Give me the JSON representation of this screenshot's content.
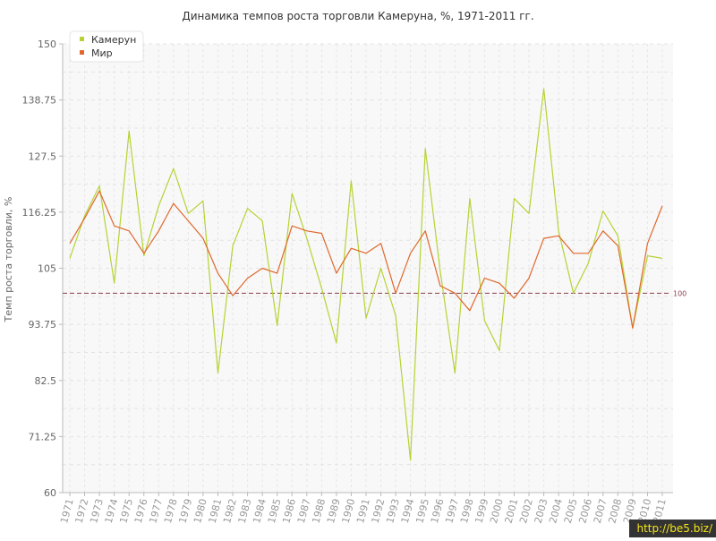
{
  "chart_data": {
    "type": "line",
    "title": "Динамика темпов роста торговли Камеруна, %, 1971-2011 гг.",
    "xlabel": "",
    "ylabel": "Темп роста торговли, %",
    "ylim": [
      60,
      150
    ],
    "yticks": [
      "60",
      "71.25",
      "82.5",
      "93.75",
      "105",
      "116.25",
      "127.5",
      "138.75",
      "150"
    ],
    "x": [
      "1971",
      "1972",
      "1973",
      "1974",
      "1975",
      "1976",
      "1977",
      "1978",
      "1979",
      "1980",
      "1981",
      "1982",
      "1983",
      "1984",
      "1985",
      "1986",
      "1987",
      "1988",
      "1989",
      "1990",
      "1991",
      "1992",
      "1993",
      "1994",
      "1995",
      "1996",
      "1997",
      "1998",
      "1999",
      "2000",
      "2001",
      "2002",
      "2003",
      "2004",
      "2005",
      "2006",
      "2007",
      "2008",
      "2009",
      "2010",
      "2011"
    ],
    "series": [
      {
        "name": "Камерун",
        "color": "#b5d334",
        "values": [
          107,
          115.5,
          121.5,
          102,
          132.5,
          107.5,
          117.5,
          125,
          116,
          118.5,
          84,
          109.5,
          117,
          114.5,
          93.5,
          120,
          111,
          101,
          90,
          122.5,
          95,
          105,
          95.5,
          66.5,
          129,
          104.5,
          84,
          119,
          94.5,
          88.5,
          119,
          116,
          141,
          112.5,
          100,
          106,
          116.5,
          111.5,
          93,
          107.5,
          107
        ]
      },
      {
        "name": "Мир",
        "color": "#e0682c",
        "values": [
          110,
          115,
          120.5,
          113.5,
          112.5,
          108,
          112.5,
          118,
          114.5,
          111,
          104,
          99.5,
          103,
          105,
          104,
          113.5,
          112.5,
          112,
          104,
          109,
          108,
          110,
          100,
          108,
          112.5,
          101.5,
          100,
          96.5,
          103,
          102,
          99,
          103,
          111,
          111.5,
          108,
          108,
          112.5,
          109.5,
          93,
          110,
          117.5
        ]
      }
    ],
    "reference_line": {
      "value": 100,
      "label": "100",
      "color": "#8c3e4c"
    },
    "legend": "top-left",
    "grid": true
  },
  "watermark": "http://be5.biz/"
}
